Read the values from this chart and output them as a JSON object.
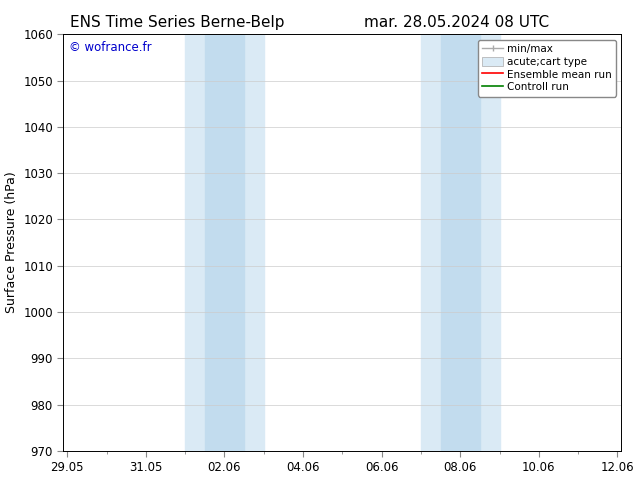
{
  "title_left": "ENS Time Series Berne-Belp",
  "title_right": "mar. 28.05.2024 08 UTC",
  "ylabel": "Surface Pressure (hPa)",
  "ylim": [
    970,
    1060
  ],
  "yticks": [
    970,
    980,
    990,
    1000,
    1010,
    1020,
    1030,
    1040,
    1050,
    1060
  ],
  "xtick_labels": [
    "29.05",
    "31.05",
    "02.06",
    "04.06",
    "06.06",
    "08.06",
    "10.06",
    "12.06"
  ],
  "xtick_positions": [
    0,
    2,
    4,
    6,
    8,
    10,
    12,
    14
  ],
  "xlim_days": [
    -0.1,
    14.1
  ],
  "shaded_outer": [
    {
      "x_start": 3.0,
      "x_end": 5.0
    },
    {
      "x_start": 9.0,
      "x_end": 11.0
    }
  ],
  "shaded_inner": [
    {
      "x_start": 3.5,
      "x_end": 4.5
    },
    {
      "x_start": 9.5,
      "x_end": 10.5
    }
  ],
  "outer_color": "#daeaf5",
  "inner_color": "#c2dcee",
  "watermark": "© wofrance.fr",
  "watermark_color": "#0000cc",
  "bg_color": "#ffffff",
  "grid_color": "#cccccc",
  "title_fontsize": 11,
  "axis_label_fontsize": 9,
  "tick_fontsize": 8.5
}
